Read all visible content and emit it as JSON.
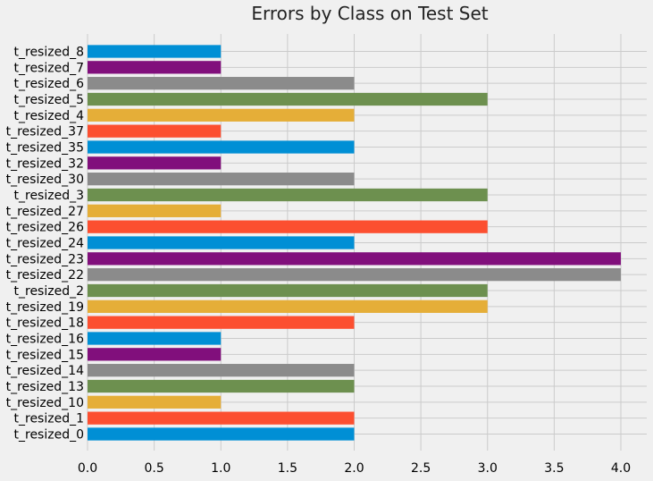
{
  "chart_data": {
    "type": "bar",
    "orientation": "horizontal",
    "title": "Errors by Class on Test Set",
    "xlabel": "",
    "ylabel": "",
    "xlim": [
      0,
      4.2
    ],
    "x_ticks": [
      "0.0",
      "0.5",
      "1.0",
      "1.5",
      "2.0",
      "2.5",
      "3.0",
      "3.5",
      "4.0"
    ],
    "grid": true,
    "categories": [
      "t_resized_0",
      "t_resized_1",
      "t_resized_10",
      "t_resized_13",
      "t_resized_14",
      "t_resized_15",
      "t_resized_16",
      "t_resized_18",
      "t_resized_19",
      "t_resized_2",
      "t_resized_22",
      "t_resized_23",
      "t_resized_24",
      "t_resized_26",
      "t_resized_27",
      "t_resized_3",
      "t_resized_30",
      "t_resized_32",
      "t_resized_35",
      "t_resized_37",
      "t_resized_4",
      "t_resized_5",
      "t_resized_6",
      "t_resized_7",
      "t_resized_8"
    ],
    "values": [
      2,
      2,
      1,
      2,
      2,
      1,
      1,
      2,
      3,
      3,
      4,
      4,
      2,
      3,
      1,
      3,
      2,
      1,
      2,
      1,
      2,
      3,
      2,
      1,
      1
    ],
    "colors": [
      "#008fd5",
      "#fc4f30",
      "#e5ae38",
      "#6d904f",
      "#8b8b8b",
      "#810f7c"
    ]
  }
}
